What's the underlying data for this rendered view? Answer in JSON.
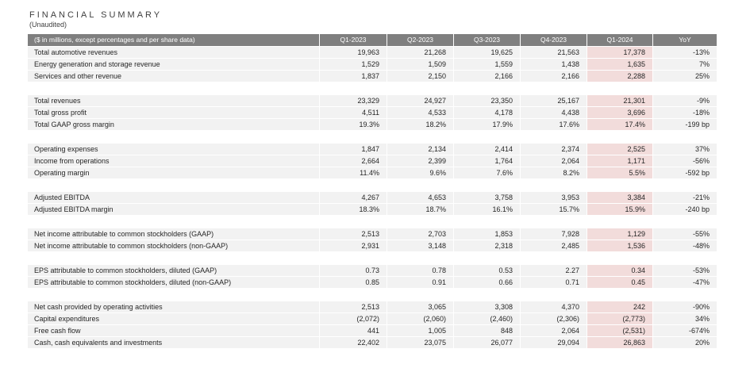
{
  "title": "FINANCIAL SUMMARY",
  "subtitle": "(Unaudited)",
  "colors": {
    "header_bg": "#7f7f7f",
    "header_text": "#ffffff",
    "row_bg": "#f2f2f2",
    "highlight_bg": "#f2dcdb",
    "text": "#262626"
  },
  "table": {
    "header_label": "($ in millions, except percentages and per share data)",
    "columns": [
      "Q1-2023",
      "Q2-2023",
      "Q3-2023",
      "Q4-2023",
      "Q1-2024",
      "YoY"
    ],
    "highlight_column": "Q1-2024",
    "highlight_column_index": 4,
    "sections": [
      {
        "rows": [
          {
            "label": "Total automotive revenues",
            "values": [
              "19,963",
              "21,268",
              "19,625",
              "21,563",
              "17,378",
              "-13%"
            ]
          },
          {
            "label": "Energy generation and storage revenue",
            "values": [
              "1,529",
              "1,509",
              "1,559",
              "1,438",
              "1,635",
              "7%"
            ]
          },
          {
            "label": "Services and other revenue",
            "values": [
              "1,837",
              "2,150",
              "2,166",
              "2,166",
              "2,288",
              "25%"
            ]
          }
        ]
      },
      {
        "rows": [
          {
            "label": "Total revenues",
            "values": [
              "23,329",
              "24,927",
              "23,350",
              "25,167",
              "21,301",
              "-9%"
            ]
          },
          {
            "label": "Total gross profit",
            "values": [
              "4,511",
              "4,533",
              "4,178",
              "4,438",
              "3,696",
              "-18%"
            ]
          },
          {
            "label": "Total GAAP gross margin",
            "values": [
              "19.3%",
              "18.2%",
              "17.9%",
              "17.6%",
              "17.4%",
              "-199 bp"
            ]
          }
        ]
      },
      {
        "rows": [
          {
            "label": "Operating expenses",
            "values": [
              "1,847",
              "2,134",
              "2,414",
              "2,374",
              "2,525",
              "37%"
            ]
          },
          {
            "label": "Income from operations",
            "values": [
              "2,664",
              "2,399",
              "1,764",
              "2,064",
              "1,171",
              "-56%"
            ]
          },
          {
            "label": "Operating margin",
            "values": [
              "11.4%",
              "9.6%",
              "7.6%",
              "8.2%",
              "5.5%",
              "-592 bp"
            ]
          }
        ]
      },
      {
        "rows": [
          {
            "label": "Adjusted EBITDA",
            "values": [
              "4,267",
              "4,653",
              "3,758",
              "3,953",
              "3,384",
              "-21%"
            ]
          },
          {
            "label": "Adjusted EBITDA margin",
            "values": [
              "18.3%",
              "18.7%",
              "16.1%",
              "15.7%",
              "15.9%",
              "-240 bp"
            ]
          }
        ]
      },
      {
        "rows": [
          {
            "label": "Net income attributable to common stockholders (GAAP)",
            "values": [
              "2,513",
              "2,703",
              "1,853",
              "7,928",
              "1,129",
              "-55%"
            ]
          },
          {
            "label": "Net income attributable to common stockholders (non-GAAP)",
            "values": [
              "2,931",
              "3,148",
              "2,318",
              "2,485",
              "1,536",
              "-48%"
            ]
          }
        ]
      },
      {
        "rows": [
          {
            "label": "EPS attributable to common stockholders, diluted (GAAP)",
            "values": [
              "0.73",
              "0.78",
              "0.53",
              "2.27",
              "0.34",
              "-53%"
            ]
          },
          {
            "label": "EPS attributable to common stockholders, diluted (non-GAAP)",
            "values": [
              "0.85",
              "0.91",
              "0.66",
              "0.71",
              "0.45",
              "-47%"
            ]
          }
        ]
      },
      {
        "rows": [
          {
            "label": "Net cash provided by operating activities",
            "values": [
              "2,513",
              "3,065",
              "3,308",
              "4,370",
              "242",
              "-90%"
            ]
          },
          {
            "label": "Capital expenditures",
            "values": [
              "(2,072)",
              "(2,060)",
              "(2,460)",
              "(2,306)",
              "(2,773)",
              "34%"
            ]
          },
          {
            "label": "Free cash flow",
            "values": [
              "441",
              "1,005",
              "848",
              "2,064",
              "(2,531)",
              "-674%"
            ]
          },
          {
            "label": "Cash, cash equivalents and investments",
            "values": [
              "22,402",
              "23,075",
              "26,077",
              "29,094",
              "26,863",
              "20%"
            ]
          }
        ]
      }
    ]
  }
}
